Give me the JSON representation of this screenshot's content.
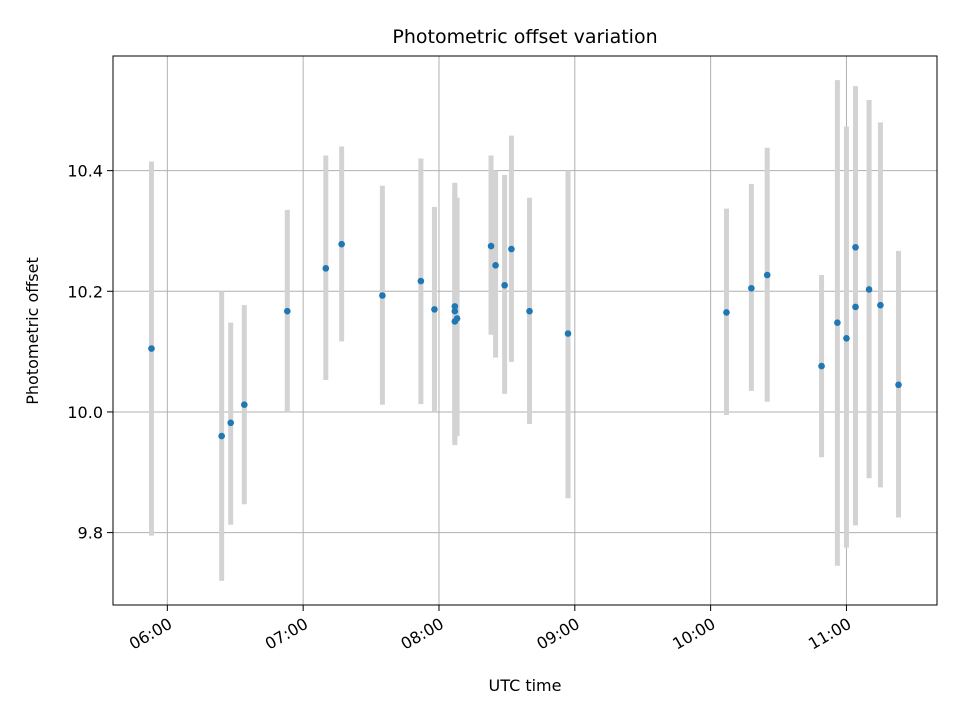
{
  "chart_data": {
    "type": "scatter",
    "title": "Photometric offset variation",
    "xlabel": "UTC time",
    "ylabel": "Photometric offset",
    "x_unit": "UTC time (HH:MM)",
    "xlim": [
      "05:36",
      "11:40"
    ],
    "ylim": [
      9.68,
      10.59
    ],
    "x_ticks": [
      "06:00",
      "07:00",
      "08:00",
      "09:00",
      "10:00",
      "11:00"
    ],
    "y_ticks": [
      9.8,
      10.0,
      10.2,
      10.4
    ],
    "y_tick_labels": [
      "9.8",
      "10.0",
      "10.2",
      "10.4"
    ],
    "grid": true,
    "marker_color": "#1f77b4",
    "errorbar_color": "#d3d3d3",
    "points": [
      {
        "t": "05:53",
        "y": 10.105,
        "lo": 9.795,
        "hi": 10.415
      },
      {
        "t": "06:24",
        "y": 9.96,
        "lo": 9.72,
        "hi": 10.2
      },
      {
        "t": "06:28",
        "y": 9.982,
        "lo": 9.813,
        "hi": 10.148
      },
      {
        "t": "06:34",
        "y": 10.012,
        "lo": 9.847,
        "hi": 10.177
      },
      {
        "t": "06:53",
        "y": 10.167,
        "lo": 10.0,
        "hi": 10.335
      },
      {
        "t": "07:10",
        "y": 10.238,
        "lo": 10.053,
        "hi": 10.425
      },
      {
        "t": "07:17",
        "y": 10.278,
        "lo": 10.117,
        "hi": 10.44
      },
      {
        "t": "07:35",
        "y": 10.193,
        "lo": 10.012,
        "hi": 10.375
      },
      {
        "t": "07:52",
        "y": 10.217,
        "lo": 10.013,
        "hi": 10.42
      },
      {
        "t": "07:58",
        "y": 10.17,
        "lo": 10.0,
        "hi": 10.34
      },
      {
        "t": "08:07",
        "y": 10.175,
        "lo": 9.955,
        "hi": 10.38
      },
      {
        "t": "08:07",
        "y": 10.167,
        "lo": 9.95,
        "hi": 10.375
      },
      {
        "t": "08:07",
        "y": 10.15,
        "lo": 9.945,
        "hi": 10.36
      },
      {
        "t": "08:08",
        "y": 10.155,
        "lo": 9.96,
        "hi": 10.355
      },
      {
        "t": "08:23",
        "y": 10.275,
        "lo": 10.128,
        "hi": 10.425
      },
      {
        "t": "08:25",
        "y": 10.243,
        "lo": 10.09,
        "hi": 10.4
      },
      {
        "t": "08:29",
        "y": 10.21,
        "lo": 10.03,
        "hi": 10.393
      },
      {
        "t": "08:32",
        "y": 10.27,
        "lo": 10.083,
        "hi": 10.458
      },
      {
        "t": "08:40",
        "y": 10.167,
        "lo": 9.98,
        "hi": 10.355
      },
      {
        "t": "08:57",
        "y": 10.13,
        "lo": 9.857,
        "hi": 10.4
      },
      {
        "t": "10:07",
        "y": 10.165,
        "lo": 9.995,
        "hi": 10.337
      },
      {
        "t": "10:18",
        "y": 10.205,
        "lo": 10.035,
        "hi": 10.378
      },
      {
        "t": "10:25",
        "y": 10.227,
        "lo": 10.017,
        "hi": 10.438
      },
      {
        "t": "10:49",
        "y": 10.076,
        "lo": 9.925,
        "hi": 10.227
      },
      {
        "t": "10:56",
        "y": 10.148,
        "lo": 9.745,
        "hi": 10.55
      },
      {
        "t": "11:00",
        "y": 10.122,
        "lo": 9.775,
        "hi": 10.473
      },
      {
        "t": "11:04",
        "y": 10.273,
        "lo": 9.815,
        "hi": 10.54
      },
      {
        "t": "11:04",
        "y": 10.174,
        "lo": 9.812,
        "hi": 10.535
      },
      {
        "t": "11:10",
        "y": 10.203,
        "lo": 9.89,
        "hi": 10.517
      },
      {
        "t": "11:15",
        "y": 10.177,
        "lo": 9.875,
        "hi": 10.48
      },
      {
        "t": "11:23",
        "y": 10.045,
        "lo": 9.825,
        "hi": 10.267
      }
    ]
  }
}
